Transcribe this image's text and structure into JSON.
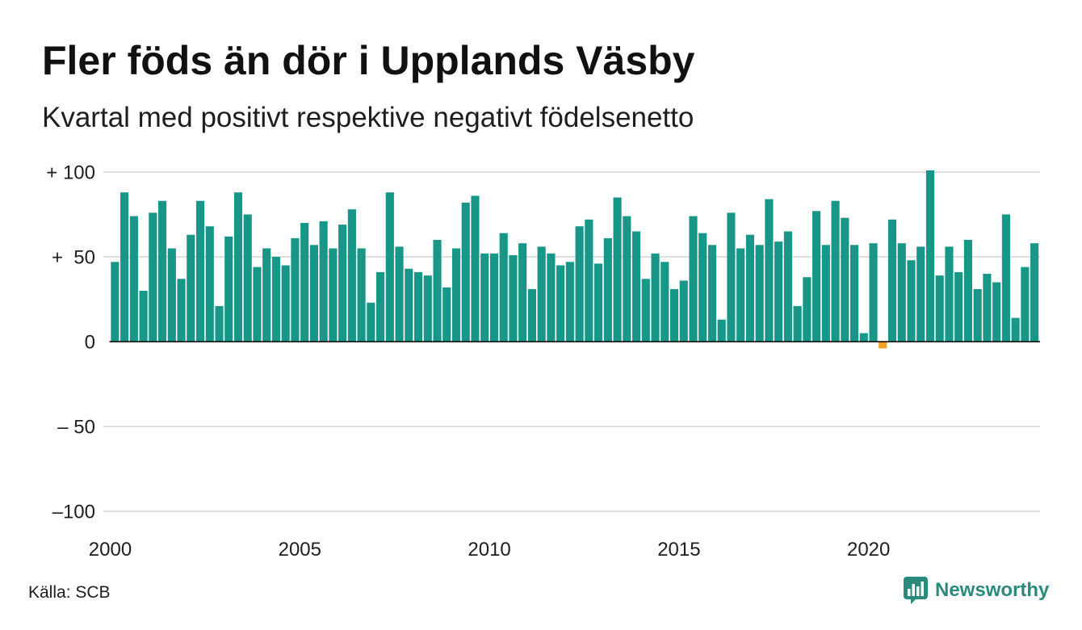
{
  "chart_data": {
    "type": "bar",
    "title": "Fler föds än dör i Upplands Väsby",
    "subtitle": "Kvartal med positivt respektive negativt födelsenetto",
    "x": [
      2000,
      2000.25,
      2000.5,
      2000.75,
      2001,
      2001.25,
      2001.5,
      2001.75,
      2002,
      2002.25,
      2002.5,
      2002.75,
      2003,
      2003.25,
      2003.5,
      2003.75,
      2004,
      2004.25,
      2004.5,
      2004.75,
      2005,
      2005.25,
      2005.5,
      2005.75,
      2006,
      2006.25,
      2006.5,
      2006.75,
      2007,
      2007.25,
      2007.5,
      2007.75,
      2008,
      2008.25,
      2008.5,
      2008.75,
      2009,
      2009.25,
      2009.5,
      2009.75,
      2010,
      2010.25,
      2010.5,
      2010.75,
      2011,
      2011.25,
      2011.5,
      2011.75,
      2012,
      2012.25,
      2012.5,
      2012.75,
      2013,
      2013.25,
      2013.5,
      2013.75,
      2014,
      2014.25,
      2014.5,
      2014.75,
      2015,
      2015.25,
      2015.5,
      2015.75,
      2016,
      2016.25,
      2016.5,
      2016.75,
      2017,
      2017.25,
      2017.5,
      2017.75,
      2018,
      2018.25,
      2018.5,
      2018.75,
      2019,
      2019.25,
      2019.5,
      2019.75,
      2020,
      2020.25,
      2020.5,
      2020.75,
      2021,
      2021.25,
      2021.5,
      2021.75,
      2022,
      2022.25,
      2022.5,
      2022.75,
      2023,
      2023.25,
      2023.5,
      2023.75,
      2024,
      2024.25
    ],
    "values": [
      47,
      88,
      74,
      30,
      76,
      83,
      55,
      37,
      63,
      83,
      68,
      21,
      62,
      88,
      75,
      44,
      55,
      50,
      45,
      61,
      70,
      57,
      71,
      55,
      69,
      78,
      55,
      23,
      41,
      88,
      56,
      43,
      41,
      39,
      60,
      32,
      55,
      82,
      86,
      52,
      52,
      64,
      51,
      58,
      31,
      56,
      52,
      45,
      47,
      68,
      72,
      46,
      61,
      85,
      74,
      65,
      37,
      52,
      47,
      31,
      36,
      74,
      64,
      57,
      13,
      76,
      55,
      63,
      57,
      84,
      59,
      65,
      21,
      38,
      77,
      57,
      83,
      73,
      57,
      5,
      58,
      -4,
      72,
      58,
      48,
      56,
      101,
      39,
      56,
      41,
      60,
      31,
      40,
      35,
      75,
      14,
      44,
      58
    ],
    "ylim": [
      -100,
      100
    ],
    "y_ticks": [
      {
        "value": 100,
        "label": "+ 100"
      },
      {
        "value": 50,
        "label": "+  50"
      },
      {
        "value": 0,
        "label": "0"
      },
      {
        "value": -50,
        "label": "– 50"
      },
      {
        "value": -100,
        "label": "–100"
      }
    ],
    "x_ticks": [
      {
        "value": 2000,
        "label": "2000"
      },
      {
        "value": 2005,
        "label": "2005"
      },
      {
        "value": 2010,
        "label": "2010"
      },
      {
        "value": 2015,
        "label": "2015"
      },
      {
        "value": 2020,
        "label": "2020"
      }
    ],
    "grid": true,
    "legend": "none",
    "colors": {
      "positive": "#189688",
      "negative": "#f2a21d",
      "grid": "#dedede",
      "zero_line": "#000000"
    }
  },
  "footer": {
    "source": "Källa: SCB",
    "brand": "Newsworthy",
    "brand_icon": "chart-speech-bubble-icon",
    "brand_color": "#2a8a7c"
  }
}
